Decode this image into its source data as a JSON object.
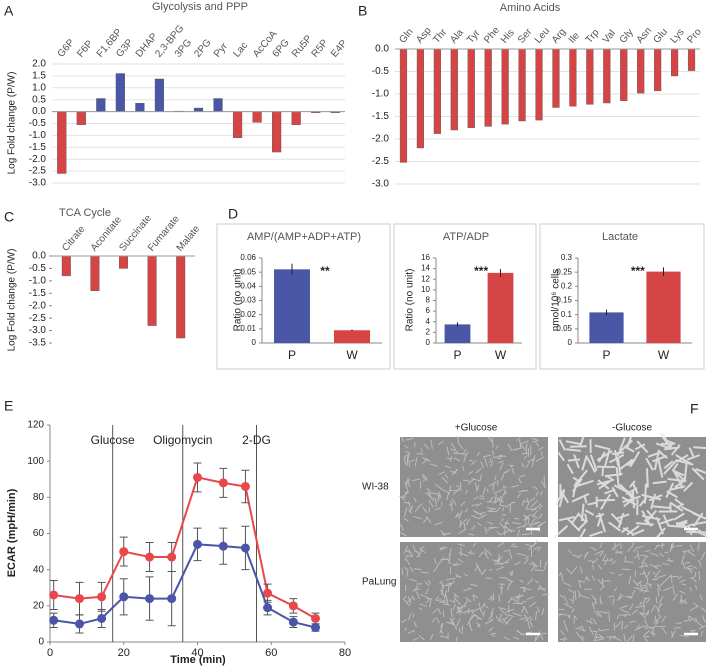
{
  "chart_data": [
    {
      "type": "bar",
      "panel": "A",
      "title": "Glycolysis and PPP",
      "y_label": "Log Fold change (P/W)",
      "categories": [
        "G6P",
        "F6P",
        "F1,6BP",
        "G3P",
        "DHAP",
        "2,3-BPG",
        "3PG",
        "2PG",
        "Pyr",
        "Lac",
        "AcCoA",
        "6PG",
        "Ru5P",
        "R5P",
        "E4P"
      ],
      "values": [
        -2.6,
        -0.55,
        0.55,
        1.6,
        0.35,
        1.37,
        0.02,
        0.15,
        0.55,
        -1.1,
        -0.45,
        -1.7,
        -0.55,
        -0.05,
        -0.05
      ],
      "colors": [
        "#d64545",
        "#d64545",
        "#4a56a6",
        "#4a56a6",
        "#4a56a6",
        "#4a56a6",
        "#4a56a6",
        "#4a56a6",
        "#4a56a6",
        "#d64545",
        "#d64545",
        "#d64545",
        "#d64545",
        "#d64545",
        "#d64545"
      ],
      "ylim": [
        -3,
        2
      ],
      "yticks": [
        {
          "value": 2,
          "label": "2.0"
        },
        1.5,
        {
          "value": 1,
          "label": "1.0"
        },
        0.5,
        {
          "value": 0,
          "label": "0.0"
        },
        -0.5,
        {
          "value": -1,
          "label": "-1.0"
        },
        -1.5,
        {
          "value": -2,
          "label": "-2.0"
        },
        -2.5,
        {
          "value": -3,
          "label": "-3.0"
        }
      ],
      "grid": true
    },
    {
      "type": "bar",
      "panel": "B",
      "title": "Amino Acids",
      "categories": [
        "Gln",
        "Asp",
        "Thr",
        "Ala",
        "Tyr",
        "Phe",
        "His",
        "Ser",
        "Leu",
        "Arg",
        "Ile",
        "Trp",
        "Val",
        "Gly",
        "Asn",
        "Glu",
        "Lys",
        "Pro"
      ],
      "values": [
        -2.52,
        -2.2,
        -1.88,
        -1.8,
        -1.75,
        -1.72,
        -1.67,
        -1.6,
        -1.58,
        -1.3,
        -1.27,
        -1.23,
        -1.2,
        -1.15,
        -0.98,
        -0.93,
        -0.6,
        -0.48
      ],
      "color": "#d64545",
      "ylim": [
        -3,
        0
      ],
      "yticks": [
        {
          "value": 0,
          "label": "0.0"
        },
        -0.5,
        {
          "value": -1,
          "label": "-1.0"
        },
        -1.5,
        {
          "value": -2,
          "label": "-2.0"
        },
        -2.5,
        {
          "value": -3,
          "label": "-3.0"
        }
      ],
      "grid": true
    },
    {
      "type": "bar",
      "panel": "C",
      "title": "TCA Cycle",
      "y_label": "Log Fold change (P/W)",
      "categories": [
        "Citrate",
        "Aconitate",
        "Succinate",
        "Fumarate",
        "Malate"
      ],
      "values": [
        -0.8,
        -1.4,
        -0.5,
        -2.8,
        -3.3
      ],
      "color": "#d64545",
      "ylim": [
        -3.5,
        0
      ],
      "yticks": [
        {
          "value": 0,
          "label": "0.0"
        },
        -0.5,
        {
          "value": -1,
          "label": "-1.0"
        },
        -1.5,
        {
          "value": -2,
          "label": "-2.0"
        },
        -2.5,
        {
          "value": -3,
          "label": "-3.0"
        },
        -3.5
      ],
      "grid": false
    },
    {
      "type": "bar",
      "panel": "D",
      "title": "AMP/(AMP+ADP+ATP)",
      "y_label": "Ratio (no unit)",
      "categories": [
        "P",
        "W"
      ],
      "values": [
        0.052,
        0.009
      ],
      "errors": [
        0.004,
        0.0005
      ],
      "colors": [
        "#4a56a6",
        "#d64545"
      ],
      "significance": "**",
      "ylim": [
        0,
        0.06
      ],
      "yticks": [
        0,
        0.01,
        0.02,
        0.03,
        0.04,
        0.05,
        0.06
      ],
      "grid": false
    },
    {
      "type": "bar",
      "title": "ATP/ADP",
      "y_label": "Ratio (no unit)",
      "categories": [
        "P",
        "W"
      ],
      "values": [
        3.5,
        13.2
      ],
      "errors": [
        0.4,
        0.7
      ],
      "colors": [
        "#4a56a6",
        "#d64545"
      ],
      "significance": "***",
      "ylim": [
        0,
        16
      ],
      "yticks": [
        0,
        2,
        4,
        6,
        8,
        10,
        12,
        14,
        16
      ],
      "grid": false
    },
    {
      "type": "bar",
      "title": "Lactate",
      "y_label": "nmol/10⁶ cells",
      "categories": [
        "P",
        "W"
      ],
      "values": [
        0.108,
        0.252
      ],
      "errors": [
        0.01,
        0.015
      ],
      "colors": [
        "#4a56a6",
        "#d64545"
      ],
      "significance": "***",
      "ylim": [
        0,
        0.3
      ],
      "yticks": [
        0,
        0.05,
        0.1,
        0.15,
        0.2,
        0.25,
        0.3
      ],
      "grid": false
    },
    {
      "type": "line",
      "panel": "E",
      "x_label": "Time (min)",
      "y_label": "ECAR (mpH/min)",
      "x": [
        1,
        8,
        14,
        20,
        27,
        33,
        40,
        47,
        53,
        59,
        66,
        72
      ],
      "series": [
        {
          "color": "#e8474c",
          "values": [
            26,
            24,
            25,
            50,
            47,
            47,
            91,
            88,
            86,
            27,
            20,
            13
          ],
          "errors": [
            8,
            9,
            8,
            8,
            8,
            8,
            8,
            8,
            9,
            5,
            4,
            3
          ]
        },
        {
          "color": "#4b55a8",
          "values": [
            12,
            10,
            13,
            25,
            24,
            24,
            54,
            53,
            52,
            19,
            11,
            8
          ],
          "errors": [
            4,
            5,
            5,
            10,
            12,
            15,
            9,
            10,
            12,
            4,
            3,
            2
          ]
        }
      ],
      "annotations": [
        {
          "x": 17,
          "label": "Glucose"
        },
        {
          "x": 36,
          "label": "Oligomycin"
        },
        {
          "x": 56,
          "label": "2-DG"
        }
      ],
      "xlim": [
        0,
        80
      ],
      "xticks": [
        0,
        20,
        40,
        60,
        80
      ],
      "ylim": [
        0,
        120
      ],
      "yticks": [
        0,
        20,
        40,
        60,
        80,
        100,
        120
      ],
      "grid": false
    }
  ],
  "micrographs": {
    "panel": "F",
    "columns": [
      "+Glucose",
      "-Glucose"
    ],
    "rows": [
      "WI-38",
      "PaLung"
    ]
  }
}
